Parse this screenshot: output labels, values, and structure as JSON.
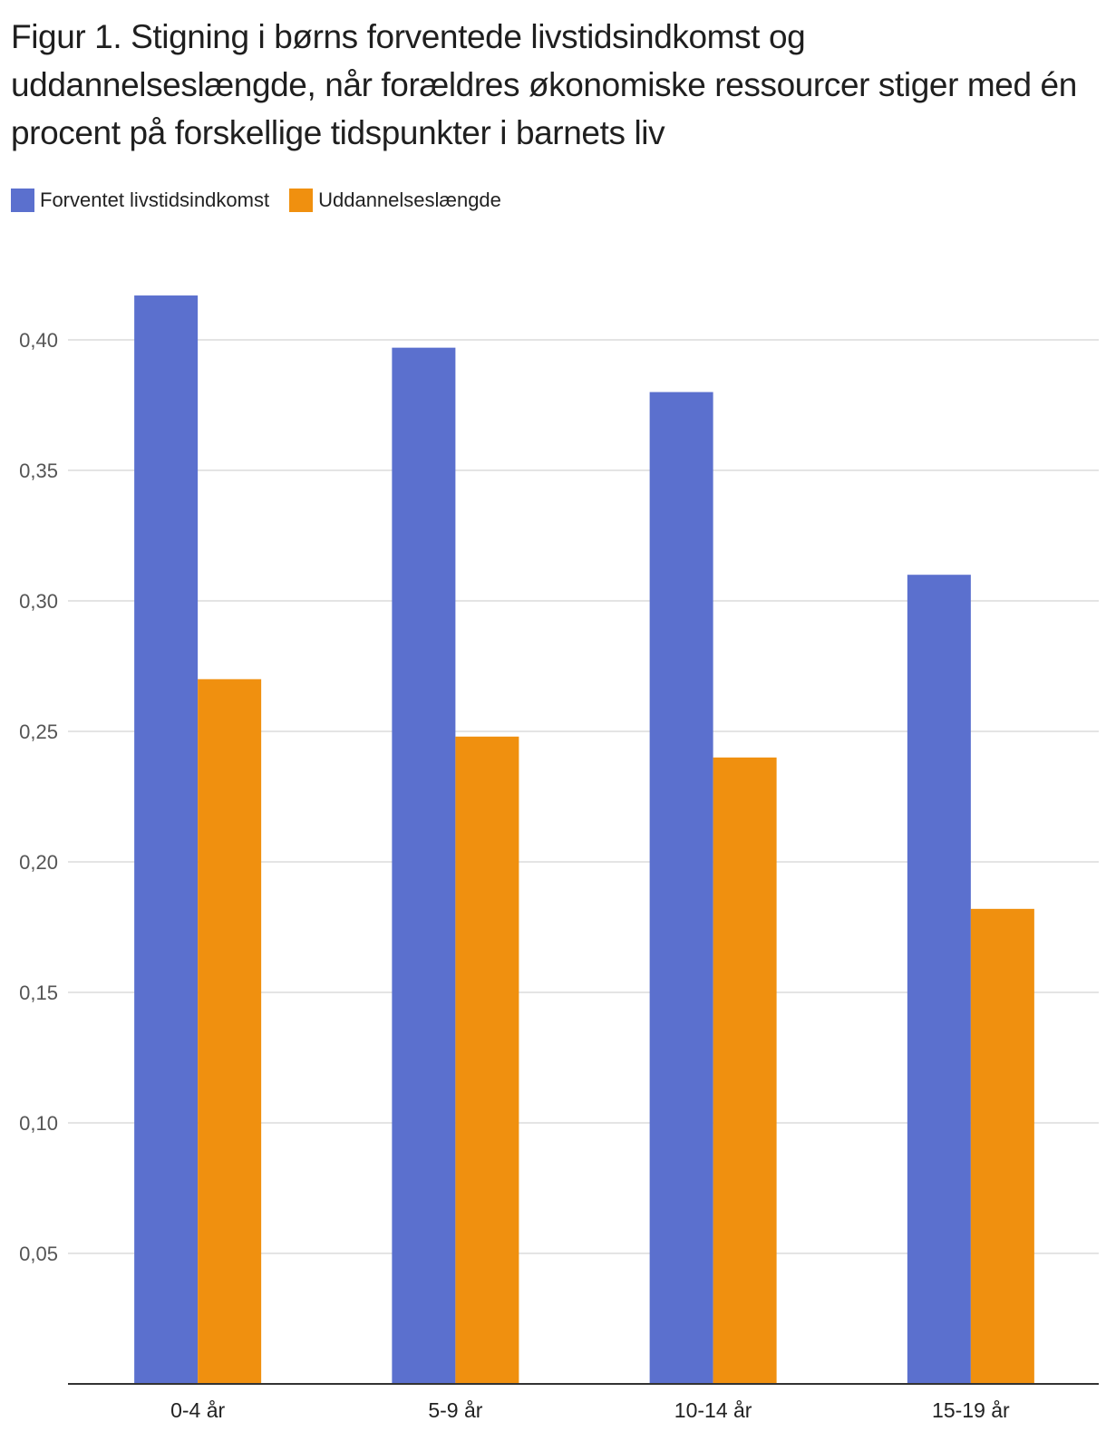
{
  "title": "Figur 1. Stigning i børns forventede livstidsindkomst og uddannelseslængde, når forældres økonomiske ressourcer stiger med én procent på forskellige tidspunkter i barnets liv",
  "legend": [
    {
      "label": "Forventet livstidsindkomst",
      "color": "#5b70ce"
    },
    {
      "label": "Uddannelseslængde",
      "color": "#f0900f"
    }
  ],
  "chart_data": {
    "type": "bar",
    "title": "Figur 1. Stigning i børns forventede livstidsindkomst og uddannelseslængde, når forældres økonomiske ressourcer stiger med én procent på forskellige tidspunkter i barnets liv",
    "categories": [
      "0-4 år",
      "5-9 år",
      "10-14 år",
      "15-19 år"
    ],
    "series": [
      {
        "name": "Forventet livstidsindkomst",
        "color": "#5b70ce",
        "values": [
          0.417,
          0.397,
          0.38,
          0.31
        ]
      },
      {
        "name": "Uddannelseslængde",
        "color": "#f0900f",
        "values": [
          0.27,
          0.248,
          0.24,
          0.182
        ]
      }
    ],
    "yticks": [
      0.05,
      0.1,
      0.15,
      0.2,
      0.25,
      0.3,
      0.35,
      0.4
    ],
    "ytick_labels": [
      "0,05",
      "0,10",
      "0,15",
      "0,20",
      "0,25",
      "0,30",
      "0,35",
      "0,40"
    ],
    "ylim": [
      0,
      0.4
    ],
    "xlabel": "",
    "ylabel": "",
    "grid": true,
    "legend_position": "top-left"
  }
}
